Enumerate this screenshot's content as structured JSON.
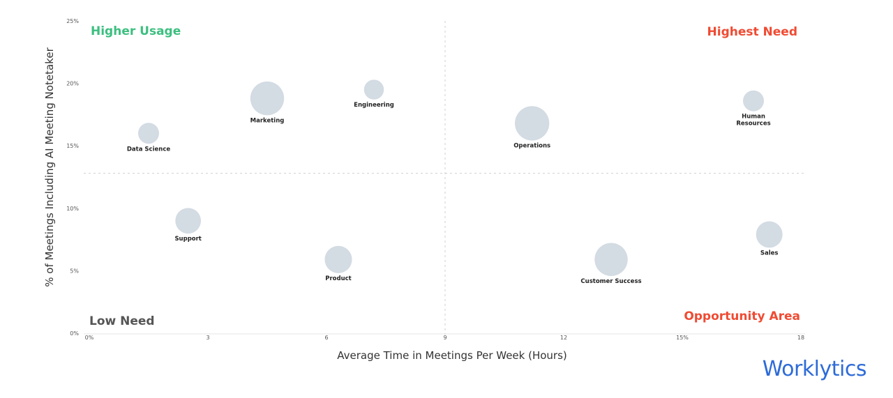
{
  "chart_data": {
    "type": "bubble",
    "xlabel": "Average Time in Meetings Per Week (Hours)",
    "ylabel": "% of Meetings Including AI Meeting Notetaker",
    "xlim": [
      0,
      18
    ],
    "ylim": [
      0,
      25
    ],
    "x_ticks": [
      "0%",
      "3",
      "6",
      "9",
      "12",
      "15%",
      "18"
    ],
    "y_ticks": [
      "0%",
      "5%",
      "10%",
      "15%",
      "20%",
      "25%"
    ],
    "x_tick_values": [
      0,
      3,
      6,
      9,
      12,
      15,
      18
    ],
    "y_tick_values": [
      0,
      5,
      10,
      15,
      20,
      25
    ],
    "x_divider": 9,
    "y_divider": 12.8,
    "bubble_color": "#d3dbe3",
    "points": [
      {
        "name": "Data Science",
        "x": 1.5,
        "y": 16.0,
        "size": 1.0
      },
      {
        "name": "Marketing",
        "x": 4.5,
        "y": 18.8,
        "size": 2.6
      },
      {
        "name": "Engineering",
        "x": 7.2,
        "y": 19.5,
        "size": 0.9
      },
      {
        "name": "Operations",
        "x": 11.2,
        "y": 16.8,
        "size": 2.7
      },
      {
        "name": "Human Resources",
        "x": 16.8,
        "y": 18.6,
        "size": 1.0
      },
      {
        "name": "Support",
        "x": 2.5,
        "y": 9.0,
        "size": 1.5
      },
      {
        "name": "Product",
        "x": 6.3,
        "y": 5.9,
        "size": 1.7
      },
      {
        "name": "Customer Success",
        "x": 13.2,
        "y": 5.9,
        "size": 2.5
      },
      {
        "name": "Sales",
        "x": 17.2,
        "y": 7.9,
        "size": 1.6
      }
    ],
    "quadrant_labels": {
      "top_left": "Higher Usage",
      "top_right": "Highest Need",
      "bottom_left": "Low Need",
      "bottom_right": "Opportunity Area"
    },
    "colors": {
      "higher_usage": "#3cbf7f",
      "highest_need": "#ef4b33",
      "low_need": "#555555",
      "opportunity_area": "#ef4b33"
    }
  },
  "brand": {
    "logo": "Worklytics",
    "color": "#2e6bd8"
  }
}
